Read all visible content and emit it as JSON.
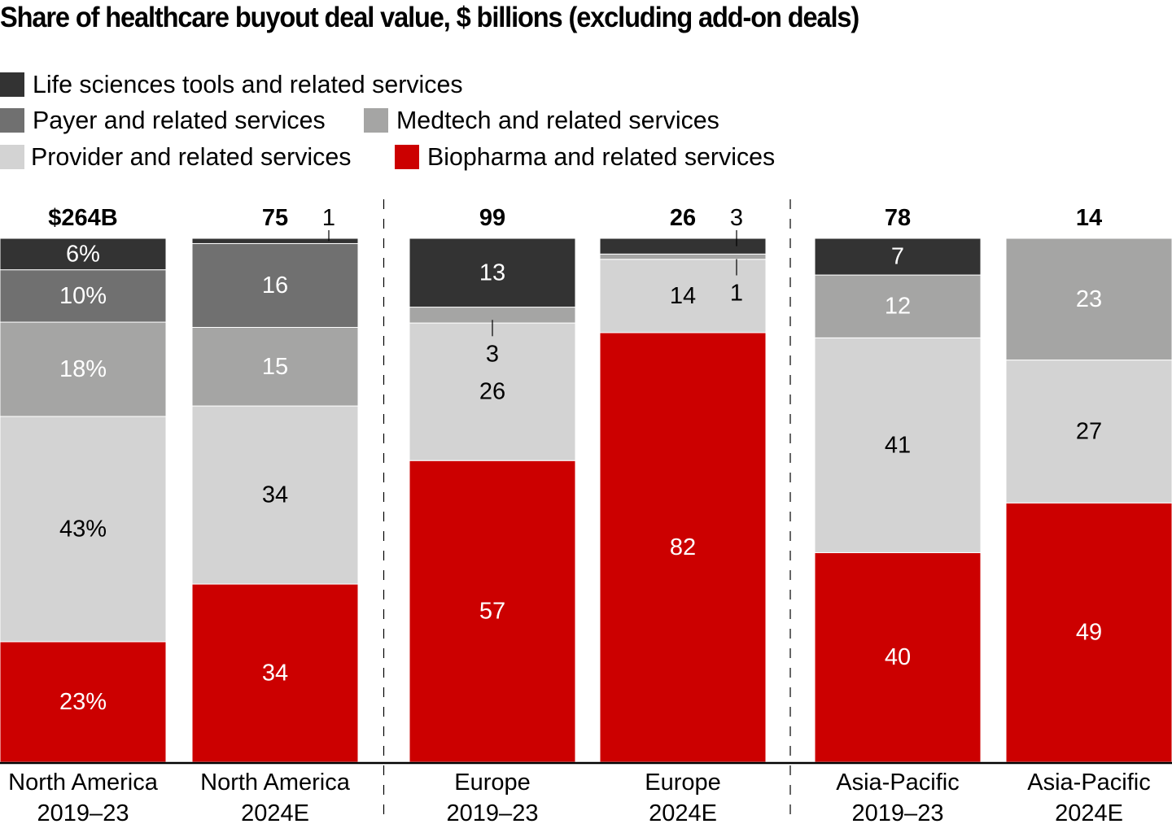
{
  "chart_data": {
    "type": "bar",
    "stacked": true,
    "normalized": true,
    "title": "Share of healthcare buyout deal value, $ billions (excluding add-on deals)",
    "xlabel": "",
    "ylabel": "",
    "ylim": [
      0,
      100
    ],
    "grid": false,
    "legend_position": "top-left",
    "categories": [
      {
        "line1": "North America",
        "line2": "2019–23"
      },
      {
        "line1": "North America",
        "line2": "2024E"
      },
      {
        "line1": "Europe",
        "line2": "2019–23"
      },
      {
        "line1": "Europe",
        "line2": "2024E"
      },
      {
        "line1": "Asia-Pacific",
        "line2": "2019–23"
      },
      {
        "line1": "Asia-Pacific",
        "line2": "2024E"
      }
    ],
    "totals": [
      "$264B",
      "75",
      "99",
      "26",
      "78",
      "14"
    ],
    "series": [
      {
        "name": "Biopharma and related services",
        "color": "#cc0000",
        "label_color": "#ffffff",
        "values": [
          23,
          34,
          57,
          82,
          40,
          49
        ],
        "labels": [
          "23%",
          "34",
          "57",
          "82",
          "40",
          "49"
        ]
      },
      {
        "name": "Provider and related services",
        "color": "#d3d3d3",
        "label_color": "#000000",
        "values": [
          43,
          34,
          26,
          14,
          41,
          27
        ],
        "labels": [
          "43%",
          "34",
          "26",
          "14",
          "41",
          "27"
        ]
      },
      {
        "name": "Medtech and related services",
        "color": "#a5a5a4",
        "label_color": "#ffffff",
        "values": [
          18,
          15,
          3,
          1,
          12,
          23
        ],
        "labels": [
          "18%",
          "15",
          "3",
          "1",
          "12",
          "23"
        ]
      },
      {
        "name": "Payer and related services",
        "color": "#707070",
        "label_color": "#ffffff",
        "values": [
          10,
          16,
          0,
          0,
          0,
          0
        ],
        "labels": [
          "10%",
          "16",
          "",
          "",
          "",
          ""
        ]
      },
      {
        "name": "Life sciences tools and related services",
        "color": "#333333",
        "label_color": "#ffffff",
        "values": [
          6,
          1,
          13,
          3,
          7,
          0
        ],
        "labels": [
          "6%",
          "1",
          "13",
          "3",
          "7",
          ""
        ]
      }
    ],
    "callouts": [
      {
        "category_index": 1,
        "series": "Life sciences tools and related services",
        "text": "1",
        "placement": "above-right"
      },
      {
        "category_index": 2,
        "series": "Medtech and related services",
        "text": "3",
        "placement": "below"
      },
      {
        "category_index": 3,
        "series": "Life sciences tools and related services",
        "text": "3",
        "placement": "above-right"
      },
      {
        "category_index": 3,
        "series": "Medtech and related services",
        "text": "1",
        "placement": "below-right"
      }
    ],
    "region_dividers_after": [
      1,
      3
    ]
  },
  "legend": {
    "rows": [
      [
        {
          "name": "Life sciences tools and related services",
          "color": "#333333"
        }
      ],
      [
        {
          "name": "Payer and related services",
          "color": "#707070"
        },
        {
          "name": "Medtech and related services",
          "color": "#a5a5a4"
        }
      ],
      [
        {
          "name": "Provider and related services",
          "color": "#d3d3d3"
        },
        {
          "name": "Biopharma and related services",
          "color": "#cc0000"
        }
      ]
    ]
  }
}
